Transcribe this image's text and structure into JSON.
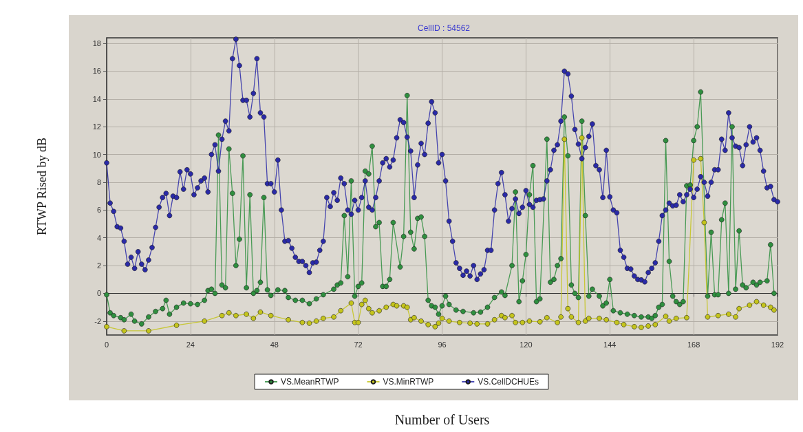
{
  "chart_data": {
    "type": "line",
    "title": "CellID : 54562",
    "xlabel": "Number of Users",
    "ylabel": "RTWP Rised by dB",
    "xlim": [
      0,
      192
    ],
    "xticks": [
      0,
      24,
      48,
      72,
      96,
      120,
      144,
      168,
      192
    ],
    "ylim": [
      -3,
      18.4
    ],
    "yticks": [
      -2,
      0,
      2,
      4,
      6,
      8,
      10,
      12,
      14,
      16,
      18
    ],
    "grid": true,
    "legend": "bottom",
    "marker": "circle",
    "line_style": "solid",
    "series": [
      {
        "name": "VS.MeanRTWP",
        "color": "#2f8f3f",
        "x": [
          0,
          1,
          2,
          4,
          5,
          7,
          8,
          10,
          12,
          14,
          16,
          17,
          18,
          20,
          22,
          24,
          26,
          28,
          29,
          30,
          31,
          32,
          33,
          34,
          35,
          36,
          37,
          38,
          39,
          40,
          41,
          42,
          43,
          44,
          45,
          46,
          47,
          49,
          51,
          52,
          54,
          56,
          58,
          60,
          62,
          65,
          66,
          67,
          68,
          69,
          70,
          71,
          72,
          73,
          74,
          75,
          76,
          77,
          78,
          79,
          80,
          81,
          82,
          84,
          85,
          86,
          87,
          88,
          89,
          90,
          91,
          92,
          93,
          94,
          95,
          96,
          97,
          98,
          100,
          102,
          105,
          107,
          109,
          111,
          113,
          114,
          116,
          117,
          118,
          119,
          120,
          121,
          122,
          123,
          124,
          126,
          127,
          128,
          129,
          130,
          131,
          132,
          133,
          134,
          135,
          136,
          137,
          138,
          139,
          141,
          142,
          143,
          144,
          145,
          147,
          149,
          151,
          153,
          155,
          156,
          157,
          158,
          159,
          160,
          161,
          162,
          163,
          164,
          165,
          166,
          167,
          168,
          169,
          170,
          172,
          173,
          174,
          175,
          176,
          177,
          178,
          179,
          180,
          181,
          182,
          183,
          185,
          186,
          187,
          189,
          190,
          191
        ],
        "values": [
          -0.1,
          -1.4,
          -1.6,
          -1.75,
          -1.9,
          -1.5,
          -2.0,
          -2.2,
          -1.7,
          -1.3,
          -1.1,
          -0.5,
          -1.5,
          -1.0,
          -0.7,
          -0.75,
          -0.8,
          -0.5,
          0.2,
          0.3,
          0.0,
          11.4,
          0.6,
          0.4,
          10.4,
          7.2,
          2.0,
          3.9,
          9.9,
          0.4,
          7.1,
          0.0,
          0.2,
          0.8,
          6.9,
          0.25,
          -0.15,
          0.25,
          0.2,
          -0.3,
          -0.5,
          -0.5,
          -0.75,
          -0.4,
          -0.1,
          0.3,
          0.6,
          0.75,
          5.6,
          1.2,
          8.1,
          -0.2,
          0.5,
          0.75,
          8.8,
          8.6,
          10.6,
          4.8,
          5.1,
          0.5,
          0.5,
          1.0,
          5.1,
          1.9,
          4.1,
          14.25,
          4.4,
          3.2,
          5.4,
          5.5,
          4.1,
          -0.5,
          -0.9,
          -1.0,
          -1.5,
          -0.9,
          -0.2,
          -0.8,
          -1.2,
          -1.3,
          -1.4,
          -1.35,
          -1.0,
          -0.3,
          0.1,
          -0.15,
          2.0,
          7.3,
          -0.6,
          0.9,
          2.8,
          7.1,
          9.2,
          -0.6,
          -0.4,
          11.1,
          0.8,
          1.0,
          2.0,
          2.5,
          12.7,
          9.9,
          0.6,
          0.0,
          -0.3,
          12.4,
          5.6,
          -0.2,
          0.3,
          -0.2,
          -0.9,
          -0.7,
          1.0,
          -1.25,
          -1.4,
          -1.5,
          -1.6,
          -1.7,
          -1.7,
          -1.8,
          -1.6,
          -1.0,
          -0.8,
          11.0,
          2.3,
          -0.2,
          -0.6,
          -0.8,
          -0.6,
          7.75,
          7.8,
          11.0,
          12.0,
          14.5,
          -0.2,
          4.4,
          -0.1,
          -0.1,
          5.3,
          6.5,
          0.0,
          12.0,
          0.3,
          4.5,
          0.6,
          0.4,
          0.8,
          0.6,
          0.8,
          0.9,
          3.5,
          0.0
        ]
      },
      {
        "name": "VS.MinRTWP",
        "color": "#c4c41c",
        "x": [
          0,
          5,
          12,
          20,
          28,
          33,
          35,
          37,
          40,
          42,
          44,
          47,
          52,
          56,
          58,
          60,
          62,
          65,
          67,
          70,
          71,
          72,
          73,
          74,
          75,
          76,
          78,
          80,
          82,
          83,
          85,
          86,
          87,
          88,
          90,
          92,
          94,
          95,
          96,
          98,
          101,
          104,
          106,
          109,
          111,
          113,
          114,
          116,
          117,
          119,
          121,
          124,
          126,
          129,
          130,
          131,
          132,
          133,
          135,
          136,
          137,
          138,
          141,
          143,
          146,
          148,
          151,
          153,
          155,
          157,
          160,
          161,
          163,
          166,
          168,
          170,
          171,
          172,
          175,
          178,
          180,
          181,
          184,
          186,
          188,
          190,
          191
        ],
        "values": [
          -2.4,
          -2.7,
          -2.7,
          -2.3,
          -2.0,
          -1.6,
          -1.4,
          -1.6,
          -1.5,
          -1.8,
          -1.35,
          -1.6,
          -1.9,
          -2.1,
          -2.15,
          -2.0,
          -1.8,
          -1.7,
          -1.25,
          -0.7,
          -2.1,
          -2.1,
          -0.8,
          -0.5,
          -1.1,
          -1.4,
          -1.25,
          -1.0,
          -0.8,
          -0.9,
          -0.9,
          -1.0,
          -1.9,
          -1.75,
          -2.0,
          -2.25,
          -2.4,
          -2.15,
          -1.8,
          -2.0,
          -2.1,
          -2.15,
          -2.2,
          -2.2,
          -1.9,
          -1.6,
          -1.75,
          -1.6,
          -2.1,
          -2.1,
          -2.0,
          -2.05,
          -1.75,
          -2.1,
          -1.7,
          11.1,
          -1.1,
          -1.7,
          -2.1,
          11.2,
          -2.0,
          -1.8,
          -1.8,
          -1.9,
          -2.1,
          -2.25,
          -2.4,
          -2.45,
          -2.35,
          -2.25,
          -1.65,
          -2.0,
          -1.8,
          -1.75,
          9.6,
          9.7,
          5.1,
          -1.7,
          -1.6,
          -1.5,
          -1.7,
          -1.1,
          -0.85,
          -0.6,
          -0.85,
          -1.0,
          -1.2
        ]
      },
      {
        "name": "VS.CellDCHUEs",
        "color": "#2a2aa8",
        "x": [
          0,
          1,
          2,
          3,
          4,
          5,
          6,
          7,
          8,
          9,
          10,
          11,
          12,
          13,
          14,
          15,
          16,
          17,
          18,
          19,
          20,
          21,
          22,
          23,
          24,
          25,
          26,
          27,
          28,
          29,
          30,
          31,
          32,
          33,
          34,
          35,
          36,
          37,
          38,
          39,
          40,
          41,
          42,
          43,
          44,
          45,
          46,
          47,
          48,
          49,
          50,
          51,
          52,
          53,
          54,
          55,
          56,
          57,
          58,
          59,
          60,
          61,
          62,
          63,
          64,
          65,
          66,
          67,
          68,
          69,
          70,
          71,
          72,
          73,
          74,
          75,
          76,
          77,
          78,
          79,
          80,
          81,
          82,
          83,
          84,
          85,
          86,
          87,
          88,
          89,
          90,
          91,
          92,
          93,
          94,
          95,
          96,
          97,
          98,
          99,
          100,
          101,
          102,
          103,
          104,
          105,
          106,
          107,
          108,
          109,
          110,
          111,
          112,
          113,
          114,
          115,
          116,
          117,
          118,
          119,
          120,
          121,
          122,
          123,
          124,
          125,
          126,
          127,
          128,
          129,
          130,
          131,
          132,
          133,
          134,
          135,
          136,
          137,
          138,
          139,
          140,
          141,
          142,
          143,
          144,
          145,
          146,
          147,
          148,
          149,
          150,
          151,
          152,
          153,
          154,
          155,
          156,
          157,
          158,
          159,
          160,
          161,
          162,
          163,
          164,
          165,
          166,
          167,
          168,
          169,
          170,
          171,
          172,
          173,
          174,
          175,
          176,
          177,
          178,
          179,
          180,
          181,
          182,
          183,
          184,
          185,
          186,
          187,
          188,
          189,
          190,
          191,
          192
        ],
        "values": [
          9.4,
          6.5,
          5.9,
          4.8,
          4.7,
          3.75,
          2.1,
          2.6,
          1.8,
          3.0,
          2.1,
          1.7,
          2.4,
          3.3,
          4.75,
          6.2,
          6.9,
          7.2,
          5.6,
          7.0,
          6.9,
          8.75,
          7.5,
          8.9,
          8.6,
          7.1,
          7.6,
          8.1,
          8.3,
          7.3,
          10.0,
          10.7,
          8.8,
          11.1,
          12.4,
          11.7,
          16.9,
          18.3,
          16.4,
          13.9,
          13.9,
          12.7,
          14.4,
          16.9,
          13.0,
          12.7,
          7.9,
          7.9,
          7.3,
          9.6,
          6.0,
          3.75,
          3.8,
          3.25,
          2.6,
          2.3,
          2.3,
          2.0,
          1.5,
          2.2,
          2.25,
          3.1,
          3.75,
          6.9,
          6.25,
          7.25,
          6.7,
          8.3,
          7.9,
          6.0,
          5.7,
          6.7,
          6.0,
          6.9,
          8.1,
          6.2,
          6.0,
          6.9,
          8.1,
          9.4,
          9.7,
          9.1,
          9.6,
          11.2,
          12.5,
          12.3,
          11.25,
          10.25,
          6.9,
          9.25,
          10.8,
          10.0,
          12.25,
          13.8,
          13.0,
          9.4,
          10.0,
          8.1,
          5.2,
          3.75,
          2.2,
          1.8,
          1.3,
          1.6,
          1.25,
          2.0,
          1.0,
          1.4,
          1.7,
          3.1,
          3.1,
          6.0,
          7.9,
          8.7,
          7.1,
          5.2,
          6.1,
          6.8,
          5.75,
          6.2,
          7.4,
          6.4,
          6.2,
          6.7,
          6.75,
          6.8,
          8.1,
          8.9,
          10.3,
          10.7,
          12.4,
          16.0,
          15.8,
          14.2,
          11.8,
          10.75,
          9.7,
          10.5,
          11.3,
          12.2,
          9.2,
          8.9,
          6.9,
          10.3,
          6.95,
          6.0,
          5.8,
          3.1,
          2.6,
          1.8,
          1.75,
          1.25,
          1.0,
          0.97,
          0.83,
          1.5,
          1.8,
          2.2,
          3.75,
          5.6,
          6.0,
          6.5,
          6.3,
          6.35,
          7.1,
          6.6,
          7.1,
          7.5,
          6.9,
          7.5,
          8.4,
          8.0,
          7.0,
          8.0,
          8.9,
          8.9,
          11.1,
          10.3,
          13.0,
          11.2,
          10.6,
          10.5,
          9.2,
          10.7,
          12.0,
          10.9,
          11.2,
          10.3,
          8.8,
          7.6,
          7.7,
          6.75,
          6.6
        ]
      }
    ]
  }
}
